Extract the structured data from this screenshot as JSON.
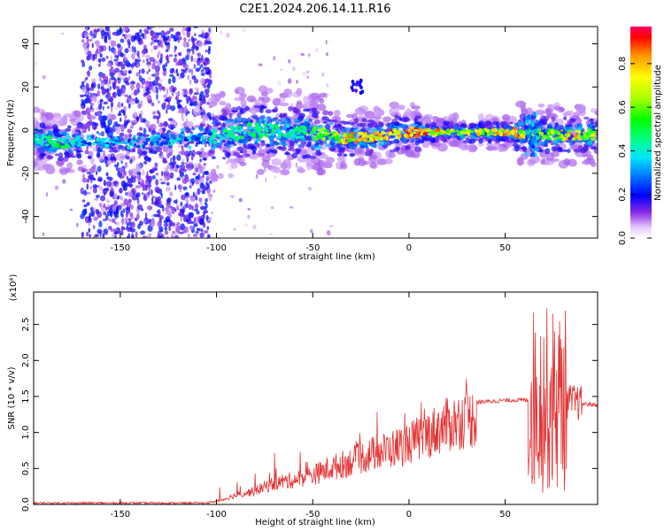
{
  "title": "C2E1.2024.206.14.11.R16",
  "chart_data": [
    {
      "type": "heatmap",
      "xlabel": "Height of straight line (km)",
      "ylabel": "Frequency (Hz)",
      "xlim": [
        -195,
        98
      ],
      "ylim": [
        -50,
        48
      ],
      "xticks": [
        -150,
        -100,
        -50,
        0,
        50
      ],
      "yticks": [
        -40,
        -20,
        0,
        20,
        40
      ],
      "colorbar": {
        "label": "Normalized spectral amplitude",
        "range": [
          0.0,
          0.97
        ],
        "ticks": [
          0.0,
          0.2,
          0.4,
          0.6,
          0.8
        ]
      },
      "centerline": [
        {
          "x": -195,
          "f": -4,
          "amp": 0.45
        },
        {
          "x": -180,
          "f": -6,
          "amp": 0.5
        },
        {
          "x": -165,
          "f": -5,
          "amp": 0.35
        },
        {
          "x": -145,
          "f": -6,
          "amp": 0.25
        },
        {
          "x": -104,
          "f": -3,
          "amp": 0.45
        },
        {
          "x": -80,
          "f": 0,
          "amp": 0.5
        },
        {
          "x": -60,
          "f": -1,
          "amp": 0.45
        },
        {
          "x": -45,
          "f": -2,
          "amp": 0.6
        },
        {
          "x": -35,
          "f": -4,
          "amp": 0.75
        },
        {
          "x": -20,
          "f": -3,
          "amp": 0.85
        },
        {
          "x": 0,
          "f": -1,
          "amp": 0.9
        },
        {
          "x": 30,
          "f": -1,
          "amp": 0.7
        },
        {
          "x": 55,
          "f": -1,
          "amp": 0.9
        },
        {
          "x": 65,
          "f": -2,
          "amp": 0.6
        },
        {
          "x": 85,
          "f": -2,
          "amp": 0.8
        },
        {
          "x": 98,
          "f": -2,
          "amp": 0.6
        }
      ],
      "scatter_region": [
        -170,
        -103
      ]
    },
    {
      "type": "line",
      "xlabel": "Height of straight line (km)",
      "ylabel": "SNR (10 * v/v)",
      "y_multiplier": "(x10⁴)",
      "xlim": [
        -195,
        98
      ],
      "ylim": [
        0.0,
        2.95
      ],
      "xticks": [
        -150,
        -100,
        -50,
        0,
        50
      ],
      "yticks": [
        0.0,
        0.5,
        1.0,
        1.5,
        2.0,
        2.5
      ],
      "series": [
        {
          "color": "#e33333",
          "envelope": [
            {
              "x": -195,
              "y": 0.02
            },
            {
              "x": -105,
              "y": 0.02
            },
            {
              "x": -100,
              "y": 0.05
            },
            {
              "x": -90,
              "y": 0.15
            },
            {
              "x": -80,
              "y": 0.22
            },
            {
              "x": -70,
              "y": 0.35
            },
            {
              "x": -60,
              "y": 0.4
            },
            {
              "x": -50,
              "y": 0.48
            },
            {
              "x": -40,
              "y": 0.6
            },
            {
              "x": -30,
              "y": 0.7
            },
            {
              "x": -20,
              "y": 0.82
            },
            {
              "x": -10,
              "y": 0.9
            },
            {
              "x": 0,
              "y": 1.0
            },
            {
              "x": 10,
              "y": 1.15
            },
            {
              "x": 20,
              "y": 1.3
            },
            {
              "x": 30,
              "y": 1.4
            },
            {
              "x": 40,
              "y": 1.43
            },
            {
              "x": 55,
              "y": 1.45
            },
            {
              "x": 63,
              "y": 1.45
            },
            {
              "x": 70,
              "y": 1.45
            },
            {
              "x": 80,
              "y": 1.45
            },
            {
              "x": 90,
              "y": 1.4
            },
            {
              "x": 98,
              "y": 1.38
            }
          ]
        }
      ]
    }
  ]
}
